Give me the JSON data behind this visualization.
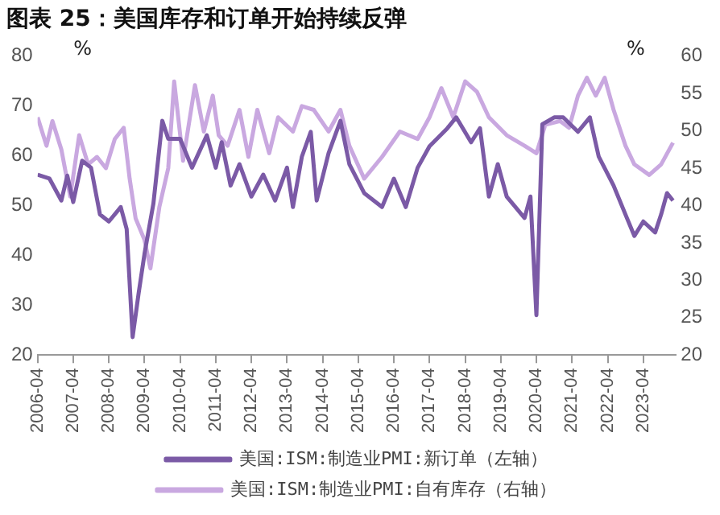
{
  "chart_data": {
    "type": "line",
    "title": "图表 25：美国库存和订单开始持续反弹",
    "ylabel": "%",
    "y2label": "%",
    "legend": "bottom",
    "grid": false,
    "marker": "none",
    "line_style": "solid",
    "xlim": [
      "2006-04",
      "2024-03"
    ],
    "xticks": [
      "2006-04",
      "2007-04",
      "2008-04",
      "2009-04",
      "2010-04",
      "2011-04",
      "2012-04",
      "2013-04",
      "2014-04",
      "2015-04",
      "2016-04",
      "2017-04",
      "2018-04",
      "2019-04",
      "2020-04",
      "2021-04",
      "2022-04",
      "2023-04"
    ],
    "ylim": [
      20,
      80
    ],
    "yticks": [
      20,
      30,
      40,
      50,
      60,
      70,
      80
    ],
    "y2lim": [
      20,
      60
    ],
    "y2ticks": [
      20,
      25,
      30,
      35,
      40,
      45,
      50,
      55,
      60
    ],
    "series": [
      {
        "name": "美国:ISM:制造业PMI:新订单（左轴）",
        "color": "#7b5aa6",
        "x": [
          "2006-04",
          "2006-08",
          "2006-12",
          "2007-02",
          "2007-04",
          "2007-07",
          "2007-10",
          "2008-01",
          "2008-04",
          "2008-08",
          "2008-10",
          "2008-12",
          "2009-02",
          "2009-04",
          "2009-07",
          "2009-10",
          "2009-12",
          "2010-04",
          "2010-08",
          "2011-01",
          "2011-04",
          "2011-06",
          "2011-09",
          "2011-12",
          "2012-04",
          "2012-08",
          "2012-12",
          "2013-04",
          "2013-06",
          "2013-09",
          "2013-12",
          "2014-02",
          "2014-06",
          "2014-10",
          "2015-01",
          "2015-06",
          "2015-12",
          "2016-04",
          "2016-08",
          "2016-12",
          "2017-04",
          "2017-10",
          "2018-01",
          "2018-06",
          "2018-09",
          "2018-12",
          "2019-03",
          "2019-06",
          "2019-12",
          "2020-02",
          "2020-04",
          "2020-06",
          "2020-10",
          "2021-01",
          "2021-06",
          "2021-10",
          "2022-01",
          "2022-06",
          "2022-10",
          "2023-01",
          "2023-04",
          "2023-08",
          "2023-10",
          "2023-12",
          "2024-02"
        ],
        "values": [
          56.2,
          55.4,
          51,
          56,
          50.7,
          59,
          57.6,
          48.2,
          46.8,
          49.7,
          45.3,
          23.6,
          32.3,
          40.3,
          50.4,
          67,
          63.4,
          63.4,
          57.6,
          64.1,
          57.6,
          62.7,
          54,
          58.3,
          51.8,
          56.2,
          51,
          57.6,
          49.7,
          59.8,
          64.8,
          51,
          60.5,
          67,
          58.3,
          52.5,
          49.7,
          55.4,
          49.7,
          57.6,
          61.9,
          65.5,
          67.7,
          62.7,
          65.5,
          51.8,
          58.3,
          51.8,
          47.5,
          51.8,
          28,
          66.3,
          67.7,
          67.7,
          64.8,
          67.7,
          59.8,
          54,
          48.2,
          43.9,
          46.8,
          44.6,
          48.2,
          52.5,
          51
        ]
      },
      {
        "name": "美国:ISM:制造业PMI:自有库存（右轴）",
        "color": "#c9a8e0",
        "axis": "y2",
        "x": [
          "2006-04",
          "2006-07",
          "2006-09",
          "2006-12",
          "2007-03",
          "2007-06",
          "2007-09",
          "2007-12",
          "2008-03",
          "2008-06",
          "2008-09",
          "2008-11",
          "2009-01",
          "2009-04",
          "2009-06",
          "2009-09",
          "2009-12",
          "2010-02",
          "2010-05",
          "2010-09",
          "2010-12",
          "2011-03",
          "2011-05",
          "2011-08",
          "2011-12",
          "2012-03",
          "2012-06",
          "2012-10",
          "2013-01",
          "2013-06",
          "2013-09",
          "2014-01",
          "2014-06",
          "2014-10",
          "2015-01",
          "2015-06",
          "2015-12",
          "2016-06",
          "2016-12",
          "2017-04",
          "2017-08",
          "2017-12",
          "2018-04",
          "2018-08",
          "2018-12",
          "2019-06",
          "2019-12",
          "2020-04",
          "2020-07",
          "2020-12",
          "2021-03",
          "2021-06",
          "2021-09",
          "2021-12",
          "2022-03",
          "2022-06",
          "2022-10",
          "2023-01",
          "2023-06",
          "2023-10",
          "2024-02"
        ],
        "values": [
          51.8,
          48,
          51.3,
          47.5,
          41.2,
          49.4,
          45.5,
          46.5,
          45,
          48.9,
          50.4,
          43.6,
          38.3,
          35.4,
          31.6,
          39.8,
          45,
          56.6,
          46,
          56.1,
          49.9,
          54.7,
          49.4,
          48,
          52.8,
          46.5,
          52.8,
          47,
          51.8,
          49.9,
          53.3,
          52.8,
          49.9,
          52.8,
          48,
          43.6,
          46.5,
          49.9,
          48.9,
          51.8,
          55.7,
          51.8,
          56.6,
          55.2,
          51.8,
          49.4,
          48,
          47,
          50.8,
          51.3,
          50.4,
          54.7,
          57.1,
          54.7,
          57.1,
          52.8,
          48,
          45.5,
          44.1,
          45.5,
          48.4
        ]
      }
    ]
  }
}
